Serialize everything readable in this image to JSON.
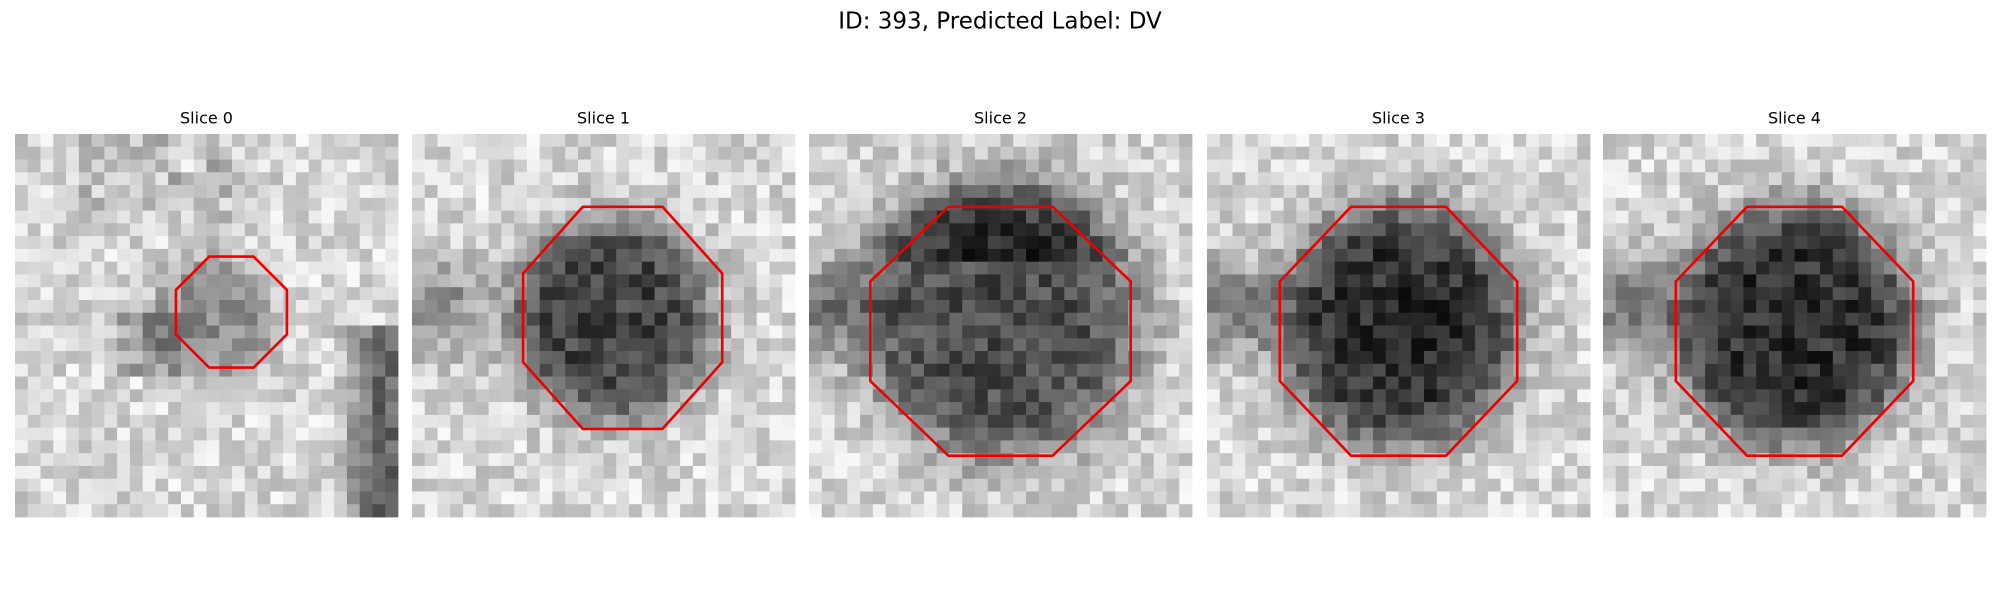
{
  "title": "ID: 393, Predicted Label: DV",
  "panels": [
    {
      "title": "Slice 0"
    },
    {
      "title": "Slice 1"
    },
    {
      "title": "Slice 2"
    },
    {
      "title": "Slice 3"
    },
    {
      "title": "Slice 4"
    }
  ]
}
